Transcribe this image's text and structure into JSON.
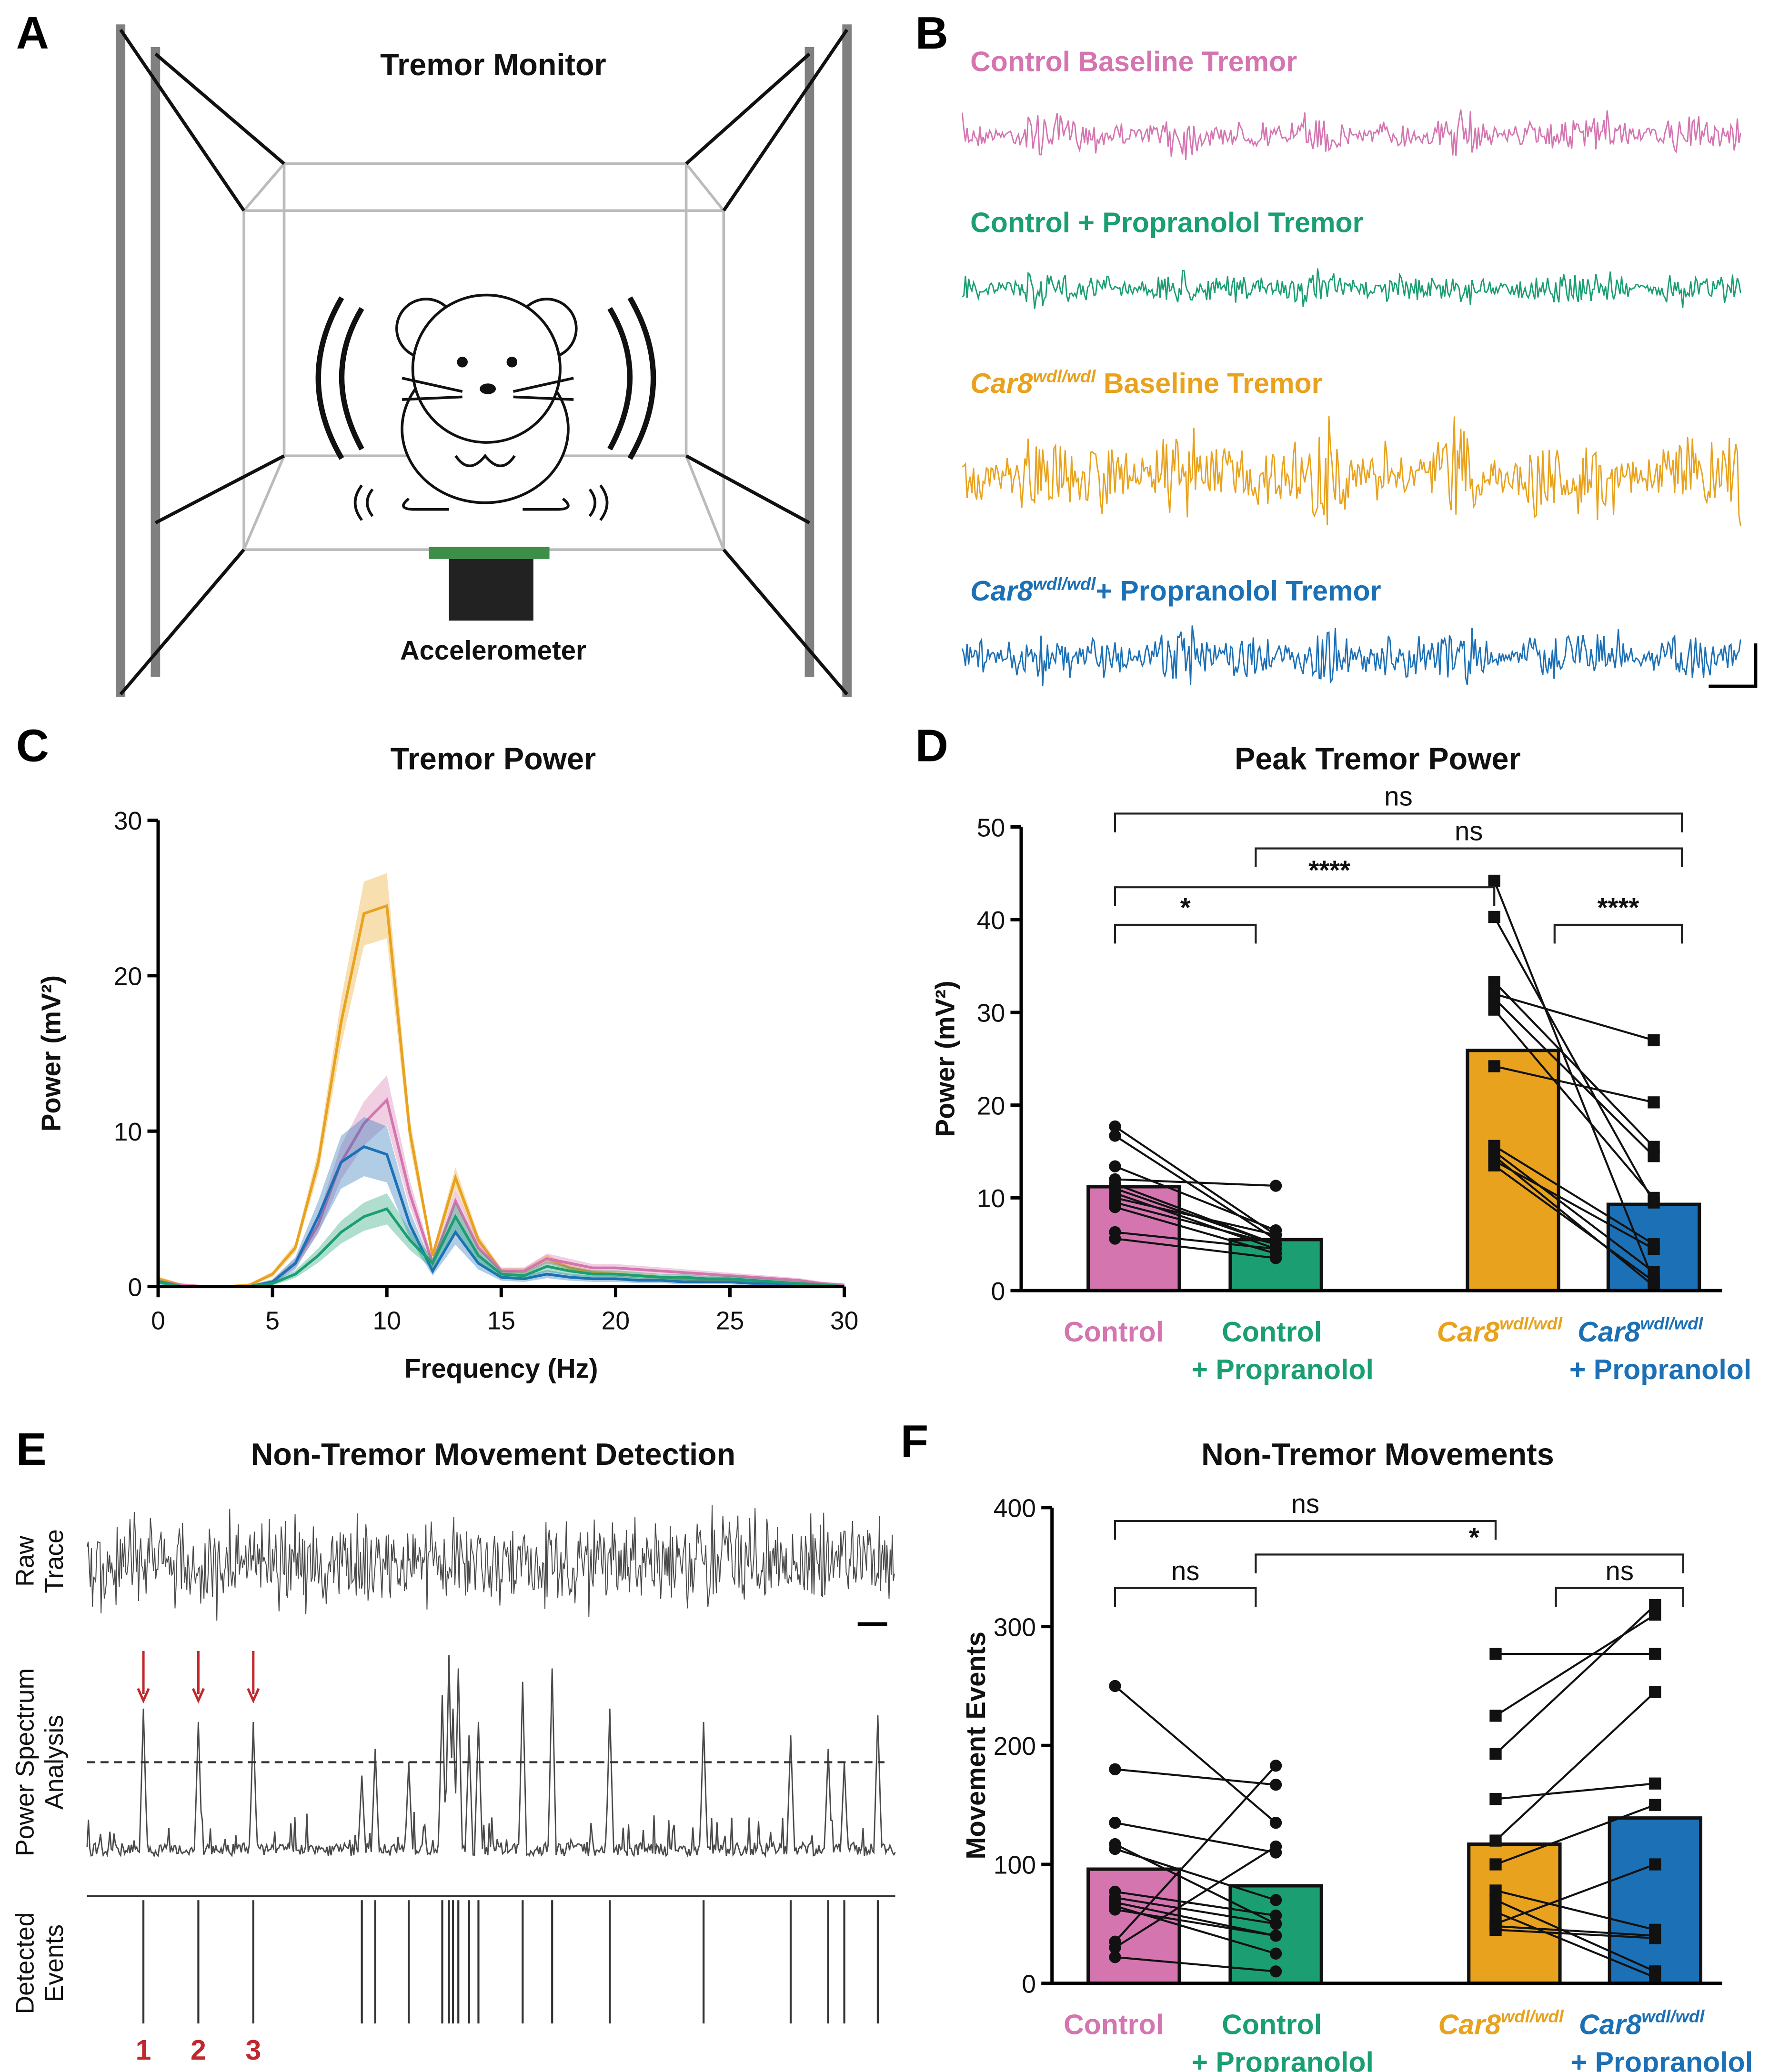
{
  "colors": {
    "control": "#d475b0",
    "control_prop": "#1a9e72",
    "car8": "#e8a21e",
    "car8_prop": "#1c70b5",
    "arrow": "#c0282d",
    "trace": "#4a4a4a"
  },
  "panelA": {
    "label": "A",
    "title": "Tremor Monitor",
    "accelerometer": "Accelerometer"
  },
  "panelB": {
    "label": "B",
    "traces": [
      {
        "name": "Control Baseline Tremor",
        "italic": "",
        "sup": "",
        "rest": "Control Baseline Tremor",
        "color": "#d475b0"
      },
      {
        "name": "Control + Propranolol Tremor",
        "italic": "",
        "sup": "",
        "rest": "Control + Propranolol Tremor",
        "color": "#1a9e72"
      },
      {
        "name": "Car8 wdl/wdl Baseline Tremor",
        "italic": "Car8",
        "sup": "wdl/wdl",
        "rest": " Baseline Tremor",
        "color": "#e8a21e"
      },
      {
        "name": "Car8 wdl/wdl + Propranolol Tremor",
        "italic": "Car8",
        "sup": "wdl/wdl",
        "rest": "+ Propranolol Tremor",
        "color": "#1c70b5"
      }
    ]
  },
  "panelE": {
    "label": "E",
    "title": "Non-Tremor Movement Detection",
    "row_labels": [
      [
        "Raw",
        "Trace"
      ],
      [
        "Power Spectrum",
        "Analysis"
      ],
      [
        "Detected",
        "Events"
      ]
    ],
    "event_numbers": [
      "1",
      "2",
      "3"
    ]
  },
  "chart_data": [
    {
      "id": "C",
      "label": "C",
      "type": "line",
      "title": "Tremor Power",
      "xlabel": "Frequency (Hz)",
      "ylabel": "Power (mV²)",
      "xlim": [
        0,
        30
      ],
      "ylim": [
        0,
        30
      ],
      "xticks": [
        0,
        5,
        10,
        15,
        20,
        25,
        30
      ],
      "yticks": [
        0,
        10,
        20,
        30
      ],
      "x": [
        0,
        1,
        2,
        3,
        4,
        5,
        6,
        7,
        8,
        9,
        10,
        11,
        12,
        13,
        14,
        15,
        16,
        17,
        18,
        19,
        20,
        21,
        22,
        23,
        24,
        25,
        26,
        27,
        28,
        29,
        30
      ],
      "series": [
        {
          "name": "Car8 wdl/wdl",
          "color": "#e8a21e",
          "values": [
            0.5,
            0.1,
            0,
            0,
            0.1,
            0.8,
            2.5,
            8,
            17,
            24,
            24.5,
            10,
            2,
            7,
            3,
            1,
            1,
            1.8,
            1.2,
            0.9,
            0.8,
            0.7,
            0.6,
            0.5,
            0.4,
            0.4,
            0.3,
            0.2,
            0.2,
            0.1,
            0
          ],
          "sem": 2
        },
        {
          "name": "Control",
          "color": "#d475b0",
          "values": [
            0.3,
            0.1,
            0,
            0,
            0,
            0.3,
            1.5,
            4,
            8,
            10.5,
            12,
            6,
            1.5,
            5.5,
            2.5,
            1,
            1,
            1.8,
            1.5,
            1.2,
            1.2,
            1.1,
            1,
            0.9,
            0.8,
            0.7,
            0.6,
            0.5,
            0.4,
            0.2,
            0.1
          ],
          "sem": 1.5
        },
        {
          "name": "Car8 wdl/wdl + Propranolol",
          "color": "#1c70b5",
          "values": [
            0.3,
            0,
            0,
            0,
            0,
            0.3,
            1.5,
            4.5,
            8,
            9,
            8.5,
            4,
            1,
            3.5,
            1.5,
            0.6,
            0.5,
            0.8,
            0.6,
            0.5,
            0.5,
            0.4,
            0.4,
            0.3,
            0.3,
            0.3,
            0.2,
            0.2,
            0.1,
            0.1,
            0
          ],
          "sem": 1.8
        },
        {
          "name": "Control + Propranolol",
          "color": "#1a9e72",
          "values": [
            0.3,
            0,
            0,
            0,
            0,
            0.2,
            0.8,
            2,
            3.5,
            4.5,
            5,
            3,
            1.5,
            4.5,
            2,
            0.8,
            0.7,
            1.3,
            1,
            0.8,
            0.8,
            0.7,
            0.6,
            0.6,
            0.5,
            0.5,
            0.4,
            0.3,
            0.2,
            0.1,
            0
          ],
          "sem": 0.9
        }
      ]
    },
    {
      "id": "D",
      "label": "D",
      "type": "bar",
      "title": "Peak Tremor Power",
      "ylabel": "Power (mV²)",
      "ylim": [
        0,
        50
      ],
      "yticks": [
        0,
        10,
        20,
        30,
        40,
        50
      ],
      "categories": [
        {
          "main": "Control",
          "sup": "",
          "line2": "",
          "color": "#d475b0"
        },
        {
          "main": "Control",
          "sup": "",
          "line2": "+ Propranolol",
          "color": "#1a9e72"
        },
        {
          "main": "Car8",
          "sup": "wdl/wdl",
          "line2": "",
          "color": "#e8a21e",
          "italic": true
        },
        {
          "main": "Car8",
          "sup": "wdl/wdl",
          "line2": "+ Propranolol",
          "color": "#1c70b5",
          "italic": true
        }
      ],
      "values": [
        11.2,
        5.5,
        25.9,
        9.3
      ],
      "marker": [
        "circle",
        "circle",
        "square",
        "square"
      ],
      "pairs": [
        [
          [
            17.7,
            6.0
          ],
          [
            16.7,
            5.5
          ],
          [
            13.4,
            6.5
          ],
          [
            12,
            11.3
          ],
          [
            11.5,
            5
          ],
          [
            11,
            5
          ],
          [
            10.5,
            4.5
          ],
          [
            10,
            6
          ],
          [
            9.5,
            5
          ],
          [
            9,
            4
          ],
          [
            6.3,
            4.5
          ],
          [
            5.6,
            3.5
          ]
        ],
        [
          [
            44.2,
            1
          ],
          [
            40.3,
            9.5
          ],
          [
            33.3,
            15.5
          ],
          [
            32,
            27
          ],
          [
            31.5,
            14.5
          ],
          [
            30.3,
            10
          ],
          [
            24.2,
            20.3
          ],
          [
            15.6,
            5
          ],
          [
            15,
            2
          ],
          [
            14.5,
            0.5
          ],
          [
            14,
            4.5
          ],
          [
            13.5,
            1
          ]
        ]
      ],
      "significance": [
        {
          "from": 0,
          "to": 3,
          "label": "ns",
          "level": 0
        },
        {
          "from": 1,
          "to": 3,
          "label": "ns",
          "level": 1
        },
        {
          "from": 0,
          "to": 2,
          "label": "****",
          "level": 2
        },
        {
          "from": 0,
          "to": 1,
          "label": "*",
          "level": 3
        },
        {
          "from": 2,
          "to": 3,
          "label": "****",
          "level": 3
        }
      ]
    },
    {
      "id": "F",
      "label": "F",
      "type": "bar",
      "title": "Non-Tremor Movements",
      "ylabel": "Movement Events",
      "ylim": [
        0,
        400
      ],
      "yticks": [
        0,
        100,
        200,
        300,
        400
      ],
      "categories": [
        {
          "main": "Control",
          "sup": "",
          "line2": "",
          "color": "#d475b0"
        },
        {
          "main": "Control",
          "sup": "",
          "line2": "+ Propranolol",
          "color": "#1a9e72"
        },
        {
          "main": "Car8",
          "sup": "wdl/wdl",
          "line2": "",
          "color": "#e8a21e",
          "italic": true
        },
        {
          "main": "Car8",
          "sup": "wdl/wdl",
          "line2": "+ Propranolol",
          "color": "#1c70b5",
          "italic": true
        }
      ],
      "values": [
        96,
        82,
        117,
        139
      ],
      "marker": [
        "circle",
        "circle",
        "square",
        "square"
      ],
      "pairs": [
        [
          [
            250,
            135
          ],
          [
            180,
            167
          ],
          [
            135,
            110
          ],
          [
            117,
            50
          ],
          [
            113,
            70
          ],
          [
            77,
            57
          ],
          [
            72,
            50
          ],
          [
            68,
            40
          ],
          [
            65,
            25
          ],
          [
            62,
            40
          ],
          [
            35,
            183
          ],
          [
            30,
            115
          ],
          [
            22,
            10
          ]
        ],
        [
          [
            277,
            277
          ],
          [
            225,
            310
          ],
          [
            193,
            318
          ],
          [
            155,
            168
          ],
          [
            120,
            245
          ],
          [
            100,
            150
          ],
          [
            78,
            45
          ],
          [
            70,
            10
          ],
          [
            60,
            5
          ],
          [
            50,
            100
          ],
          [
            48,
            40
          ],
          [
            45,
            38
          ]
        ]
      ],
      "significance": [
        {
          "from": 0,
          "to": 2,
          "label": "ns",
          "level": 0
        },
        {
          "from": 1,
          "to": 3,
          "label": "*",
          "level": 1
        },
        {
          "from": 0,
          "to": 1,
          "label": "ns",
          "level": 2
        },
        {
          "from": 2,
          "to": 3,
          "label": "ns",
          "level": 2
        }
      ]
    }
  ]
}
